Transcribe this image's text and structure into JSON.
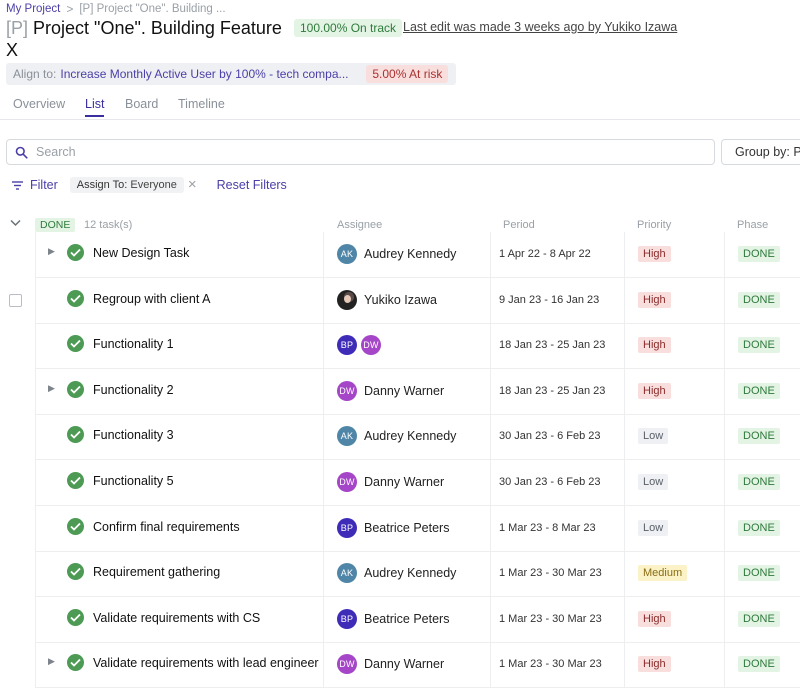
{
  "breadcrumb": {
    "root": "My Project",
    "separator": ">",
    "current": "[P] Project \"One\". Building ..."
  },
  "header": {
    "title_prefix": "[P]",
    "title": "Project \"One\". Building Feature X",
    "status": "100.00% On track",
    "last_edit": "Last edit was made 3 weeks ago by Yukiko Izawa"
  },
  "alignment": {
    "label": "Align to:",
    "objective": "Increase Monthly Active User by 100% - tech compa...",
    "risk": "5.00% At risk"
  },
  "tabs": [
    {
      "label": "Overview",
      "active": false
    },
    {
      "label": "List",
      "active": true
    },
    {
      "label": "Board",
      "active": false
    },
    {
      "label": "Timeline",
      "active": false
    }
  ],
  "search": {
    "placeholder": "Search",
    "value": ""
  },
  "group_by": {
    "label": "Group by: P"
  },
  "filters": {
    "filter_label": "Filter",
    "chip_key": "Assign To:",
    "chip_value": "Everyone",
    "reset_label": "Reset Filters"
  },
  "group": {
    "tag": "DONE",
    "count": "12 task(s)",
    "columns": {
      "assignee": "Assignee",
      "period": "Period",
      "priority": "Priority",
      "phase": "Phase"
    }
  },
  "colors": {
    "avatar_AK": "#4f86a8",
    "avatar_DW": "#a545c7",
    "avatar_BP": "#3e2bb8",
    "accent": "#4b3fa8",
    "done_green": "#4d9a54"
  },
  "tasks": [
    {
      "name": "New Design Task",
      "expandable": true,
      "assignees": [
        {
          "initials": "AK",
          "name": "Audrey Kennedy"
        }
      ],
      "period": "1 Apr 22 - 8 Apr 22",
      "priority": "High",
      "phase": "DONE"
    },
    {
      "name": "Regroup with client A",
      "expandable": false,
      "checkbox": true,
      "assignees": [
        {
          "initials": "",
          "photo": true,
          "name": "Yukiko Izawa"
        }
      ],
      "period": "9 Jan 23 - 16 Jan 23",
      "priority": "High",
      "phase": "DONE"
    },
    {
      "name": "Functionality 1",
      "expandable": false,
      "assignees": [
        {
          "initials": "BP",
          "name": ""
        },
        {
          "initials": "DW",
          "name": ""
        }
      ],
      "period": "18 Jan 23 - 25 Jan 23",
      "priority": "High",
      "phase": "DONE"
    },
    {
      "name": "Functionality 2",
      "expandable": true,
      "assignees": [
        {
          "initials": "DW",
          "name": "Danny Warner"
        }
      ],
      "period": "18 Jan 23 - 25 Jan 23",
      "priority": "High",
      "phase": "DONE"
    },
    {
      "name": "Functionality 3",
      "expandable": false,
      "assignees": [
        {
          "initials": "AK",
          "name": "Audrey Kennedy"
        }
      ],
      "period": "30 Jan 23 - 6 Feb 23",
      "priority": "Low",
      "phase": "DONE"
    },
    {
      "name": "Functionality 5",
      "expandable": false,
      "assignees": [
        {
          "initials": "DW",
          "name": "Danny Warner"
        }
      ],
      "period": "30 Jan 23 - 6 Feb 23",
      "priority": "Low",
      "phase": "DONE"
    },
    {
      "name": "Confirm final requirements",
      "expandable": false,
      "assignees": [
        {
          "initials": "BP",
          "name": "Beatrice Peters"
        }
      ],
      "period": "1 Mar 23 - 8 Mar 23",
      "priority": "Low",
      "phase": "DONE"
    },
    {
      "name": "Requirement gathering",
      "expandable": false,
      "assignees": [
        {
          "initials": "AK",
          "name": "Audrey Kennedy"
        }
      ],
      "period": "1 Mar 23 - 30 Mar 23",
      "priority": "Medium",
      "phase": "DONE"
    },
    {
      "name": "Validate requirements with CS",
      "expandable": false,
      "assignees": [
        {
          "initials": "BP",
          "name": "Beatrice Peters"
        }
      ],
      "period": "1 Mar 23 - 30 Mar 23",
      "priority": "High",
      "phase": "DONE"
    },
    {
      "name": "Validate requirements with lead engineer",
      "expandable": true,
      "assignees": [
        {
          "initials": "DW",
          "name": "Danny Warner"
        }
      ],
      "period": "1 Mar 23 - 30 Mar 23",
      "priority": "High",
      "phase": "DONE"
    }
  ]
}
